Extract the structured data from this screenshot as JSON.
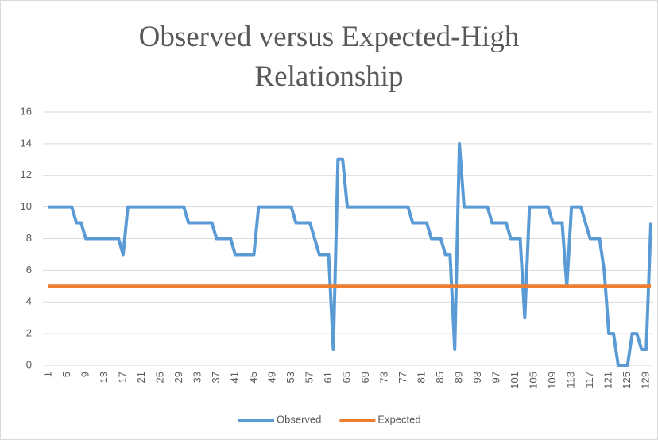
{
  "chart_data": {
    "type": "line",
    "title": "Observed versus Expected-High Relationship",
    "categories": [
      "1",
      null,
      null,
      null,
      "5",
      null,
      null,
      null,
      "9",
      null,
      null,
      null,
      "13",
      null,
      null,
      null,
      "17",
      null,
      null,
      null,
      "21",
      null,
      null,
      null,
      "25",
      null,
      null,
      null,
      "29",
      null,
      null,
      null,
      "33",
      null,
      null,
      null,
      "37",
      null,
      null,
      null,
      "41",
      null,
      null,
      null,
      "45",
      null,
      null,
      null,
      "49",
      null,
      null,
      null,
      "53",
      null,
      null,
      null,
      "57",
      null,
      null,
      null,
      "61",
      null,
      null,
      null,
      "65",
      null,
      null,
      null,
      "69",
      null,
      null,
      null,
      "73",
      null,
      null,
      null,
      "77",
      null,
      null,
      null,
      "81",
      null,
      null,
      null,
      "85",
      null,
      null,
      null,
      "89",
      null,
      null,
      null,
      "93",
      null,
      null,
      null,
      "97",
      null,
      null,
      null,
      "101",
      null,
      null,
      null,
      "105",
      null,
      null,
      null,
      "109",
      null,
      null,
      null,
      "113",
      null,
      null,
      null,
      "117",
      null,
      null,
      null,
      "121",
      null,
      null,
      null,
      "125",
      null,
      null,
      null,
      "129",
      null
    ],
    "series": [
      {
        "name": "Observed",
        "color": "#5b9bd5",
        "values": [
          10,
          10,
          10,
          10,
          10,
          10,
          9,
          9,
          8,
          8,
          8,
          8,
          8,
          8,
          8,
          8,
          7,
          10,
          10,
          10,
          10,
          10,
          10,
          10,
          10,
          10,
          10,
          10,
          10,
          10,
          9,
          9,
          9,
          9,
          9,
          9,
          8,
          8,
          8,
          8,
          7,
          7,
          7,
          7,
          7,
          10,
          10,
          10,
          10,
          10,
          10,
          10,
          10,
          9,
          9,
          9,
          9,
          8,
          7,
          7,
          7,
          1,
          13,
          13,
          10,
          10,
          10,
          10,
          10,
          10,
          10,
          10,
          10,
          10,
          10,
          10,
          10,
          10,
          9,
          9,
          9,
          9,
          8,
          8,
          8,
          7,
          7,
          1,
          14,
          10,
          10,
          10,
          10,
          10,
          10,
          9,
          9,
          9,
          9,
          8,
          8,
          8,
          3,
          10,
          10,
          10,
          10,
          10,
          9,
          9,
          9,
          5,
          10,
          10,
          10,
          9,
          8,
          8,
          8,
          6,
          2,
          2,
          0,
          0,
          0,
          2,
          2,
          1,
          1,
          9
        ]
      },
      {
        "name": "Expected",
        "color": "#ed7d31",
        "values": [
          5,
          5,
          5,
          5,
          5,
          5,
          5,
          5,
          5,
          5,
          5,
          5,
          5,
          5,
          5,
          5,
          5,
          5,
          5,
          5,
          5,
          5,
          5,
          5,
          5,
          5,
          5,
          5,
          5,
          5,
          5,
          5,
          5,
          5,
          5,
          5,
          5,
          5,
          5,
          5,
          5,
          5,
          5,
          5,
          5,
          5,
          5,
          5,
          5,
          5,
          5,
          5,
          5,
          5,
          5,
          5,
          5,
          5,
          5,
          5,
          5,
          5,
          5,
          5,
          5,
          5,
          5,
          5,
          5,
          5,
          5,
          5,
          5,
          5,
          5,
          5,
          5,
          5,
          5,
          5,
          5,
          5,
          5,
          5,
          5,
          5,
          5,
          5,
          5,
          5,
          5,
          5,
          5,
          5,
          5,
          5,
          5,
          5,
          5,
          5,
          5,
          5,
          5,
          5,
          5,
          5,
          5,
          5,
          5,
          5,
          5,
          5,
          5,
          5,
          5,
          5,
          5,
          5,
          5,
          5,
          5,
          5,
          5,
          5,
          5,
          5,
          5,
          5,
          5,
          5
        ]
      }
    ],
    "ylim": [
      0,
      16
    ],
    "yticks": [
      0,
      2,
      4,
      6,
      8,
      10,
      12,
      14,
      16
    ],
    "grid": true,
    "legend": "bottom"
  }
}
